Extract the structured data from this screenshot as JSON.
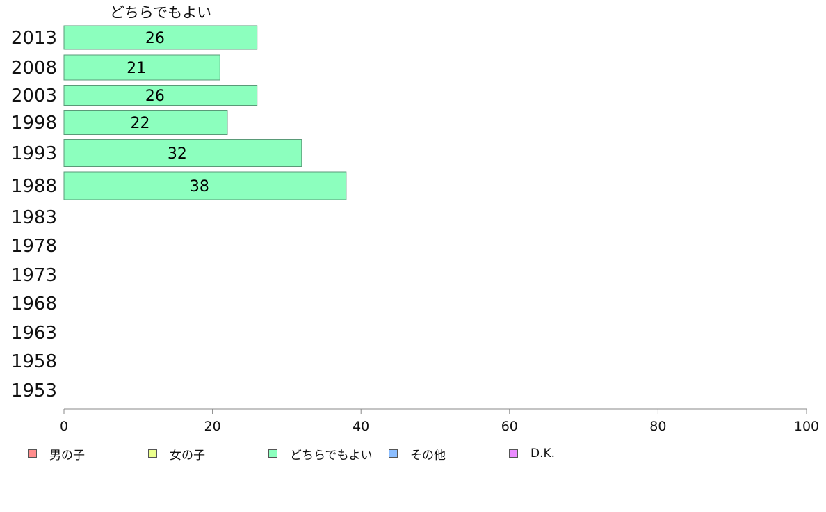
{
  "chart_data": {
    "type": "bar",
    "orientation": "horizontal",
    "title": "どちらでもよい",
    "categories": [
      "2013",
      "2008",
      "2003",
      "1998",
      "1993",
      "1988",
      "1983",
      "1978",
      "1973",
      "1968",
      "1963",
      "1958",
      "1953"
    ],
    "series": [
      {
        "name": "どちらでもよい",
        "color": "#8cffbe",
        "values": [
          26,
          21,
          26,
          22,
          32,
          38,
          null,
          null,
          null,
          null,
          null,
          null,
          null
        ]
      }
    ],
    "data_labels": [
      "26",
      "21",
      "26",
      "22",
      "32",
      "38"
    ],
    "xlim": [
      0,
      100
    ],
    "xticks": [
      "0",
      "20",
      "40",
      "60",
      "80",
      "100"
    ],
    "grid": false,
    "legend": {
      "placement": "bottom",
      "items": [
        {
          "name": "男の子",
          "color": "#ff8c8c"
        },
        {
          "name": "女の子",
          "color": "#ebff8c"
        },
        {
          "name": "どちらでもよい",
          "color": "#8cffbe"
        },
        {
          "name": "その他",
          "color": "#8cbeff"
        },
        {
          "name": "D.K.",
          "color": "#eb8cff"
        }
      ]
    }
  }
}
